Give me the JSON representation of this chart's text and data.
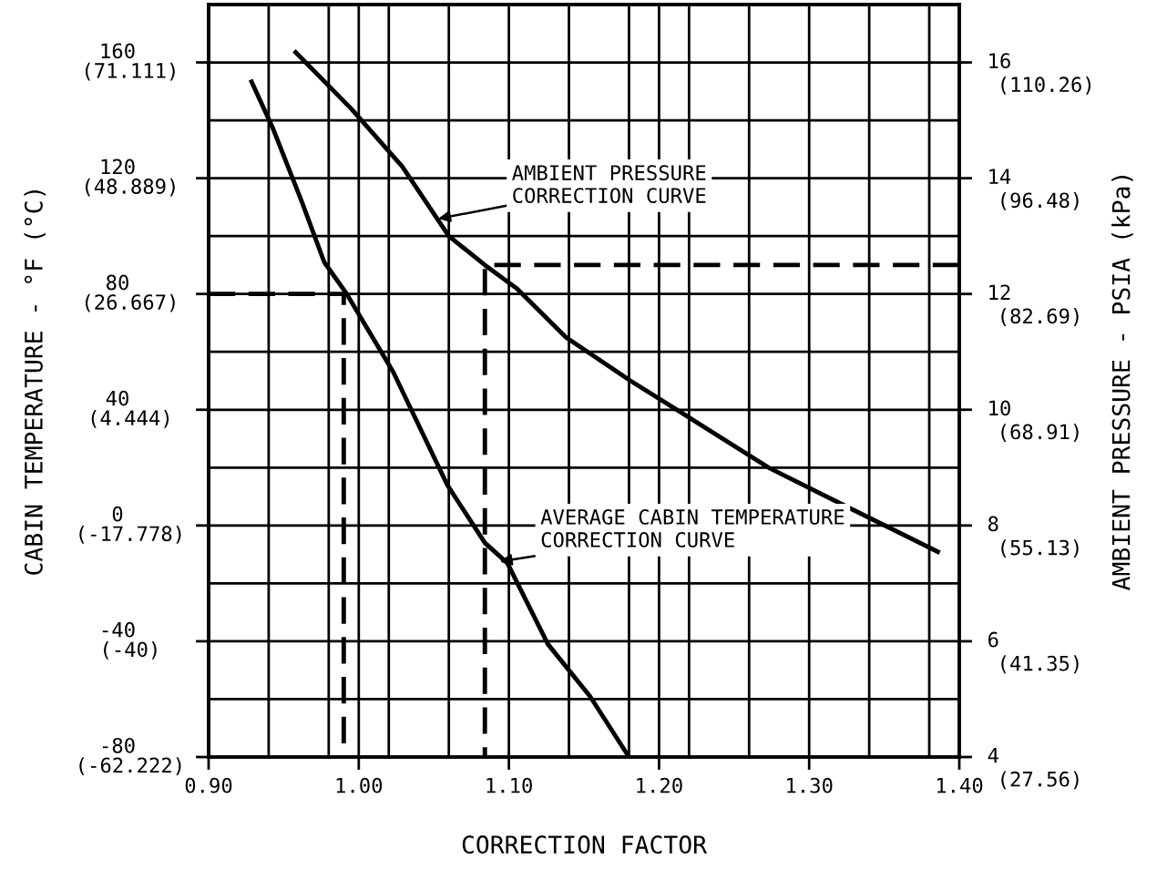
{
  "chart_data": {
    "type": "line",
    "xlabel": "CORRECTION FACTOR",
    "ylabel": "CABIN TEMPERATURE - °F (°C)",
    "y2label": "AMBIENT PRESSURE - PSIA (kPa)",
    "xlim": [
      0.9,
      1.4
    ],
    "ylim": [
      -80,
      180
    ],
    "y2lim": [
      4,
      17
    ],
    "y3lim": [
      -62.222,
      82.222
    ],
    "xticks": [
      {
        "value": 0.9,
        "label": "0.90"
      },
      {
        "value": 0.94,
        "label": null
      },
      {
        "value": 0.98,
        "label": null
      },
      {
        "value": 1.0,
        "label": "1.00"
      },
      {
        "value": 1.02,
        "label": null
      },
      {
        "value": 1.06,
        "label": null
      },
      {
        "value": 1.1,
        "label": "1.10"
      },
      {
        "value": 1.14,
        "label": null
      },
      {
        "value": 1.18,
        "label": null
      },
      {
        "value": 1.2,
        "label": "1.20"
      },
      {
        "value": 1.22,
        "label": null
      },
      {
        "value": 1.26,
        "label": null
      },
      {
        "value": 1.3,
        "label": "1.30"
      },
      {
        "value": 1.34,
        "label": null
      },
      {
        "value": 1.38,
        "label": null
      },
      {
        "value": 1.4,
        "label": "1.40"
      }
    ],
    "yticks": [
      -80,
      {
        "value": -60,
        "label": null
      },
      -40,
      {
        "value": -20,
        "label": null
      },
      0,
      {
        "value": 20,
        "label": null
      },
      40,
      {
        "value": 60,
        "label": null
      },
      80,
      {
        "value": 100,
        "label": null
      },
      120,
      {
        "value": 140,
        "label": null
      },
      160
    ],
    "y2ticks": [
      4,
      6,
      8,
      10,
      12,
      14,
      16
    ],
    "y3ticks": [
      {
        "value": -62.222,
        "label": "(-62.222)"
      },
      {
        "value": -40,
        "label": "(-40)"
      },
      {
        "value": -17.778,
        "label": "(-17.778)"
      },
      {
        "value": 4.444,
        "label": "(4.444)"
      },
      {
        "value": 26.667,
        "label": "(26.667)"
      },
      {
        "value": 48.889,
        "label": "(48.889)"
      },
      {
        "value": 71.111,
        "label": "(71.111)"
      }
    ],
    "grid": true,
    "series": [
      {
        "color": "#000000",
        "line_style": "solid",
        "x": [
          0.928,
          0.943,
          0.962,
          0.977,
          0.992,
          1.023,
          1.059,
          1.084,
          1.099,
          1.126,
          1.154,
          1.18
        ],
        "values": [
          154,
          137,
          112,
          91,
          80,
          53,
          14,
          -6,
          -13,
          -41,
          -59,
          -80
        ]
      },
      {
        "axis": "y2",
        "color": "#000000",
        "line_style": "solid",
        "x": [
          0.957,
          0.995,
          1.029,
          1.06,
          1.084,
          1.105,
          1.138,
          1.181,
          1.218,
          1.273,
          1.327,
          1.387
        ],
        "values": [
          16.2,
          15.2,
          14.2,
          13.0,
          12.5,
          12.1,
          11.25,
          10.5,
          9.9,
          9.0,
          8.3,
          7.53
        ]
      },
      {
        "color": "#000000",
        "line_style": "dashed",
        "x": [
          0.9,
          0.99,
          0.99
        ],
        "values": [
          80,
          80,
          -80
        ]
      },
      {
        "axis": "y2",
        "color": "#000000",
        "line_style": "dashed",
        "x": [
          1.4,
          1.084,
          1.084
        ],
        "values": [
          12.5,
          12.5,
          4
        ]
      }
    ],
    "annotations": [
      {
        "text": "AMBIENT PRESSURE\nCORRECTION CURVE",
        "x": 1.053,
        "y": 106
      },
      {
        "text": "AVERAGE CABIN TEMPERATURE\nCORRECTION CURVE",
        "x": 1.094,
        "y": -12.5
      },
      "(27.56)",
      "(41.35)",
      "(55.13)",
      "(68.91)",
      "(82.69)",
      "(96.48)",
      "(110.26)"
    ]
  }
}
